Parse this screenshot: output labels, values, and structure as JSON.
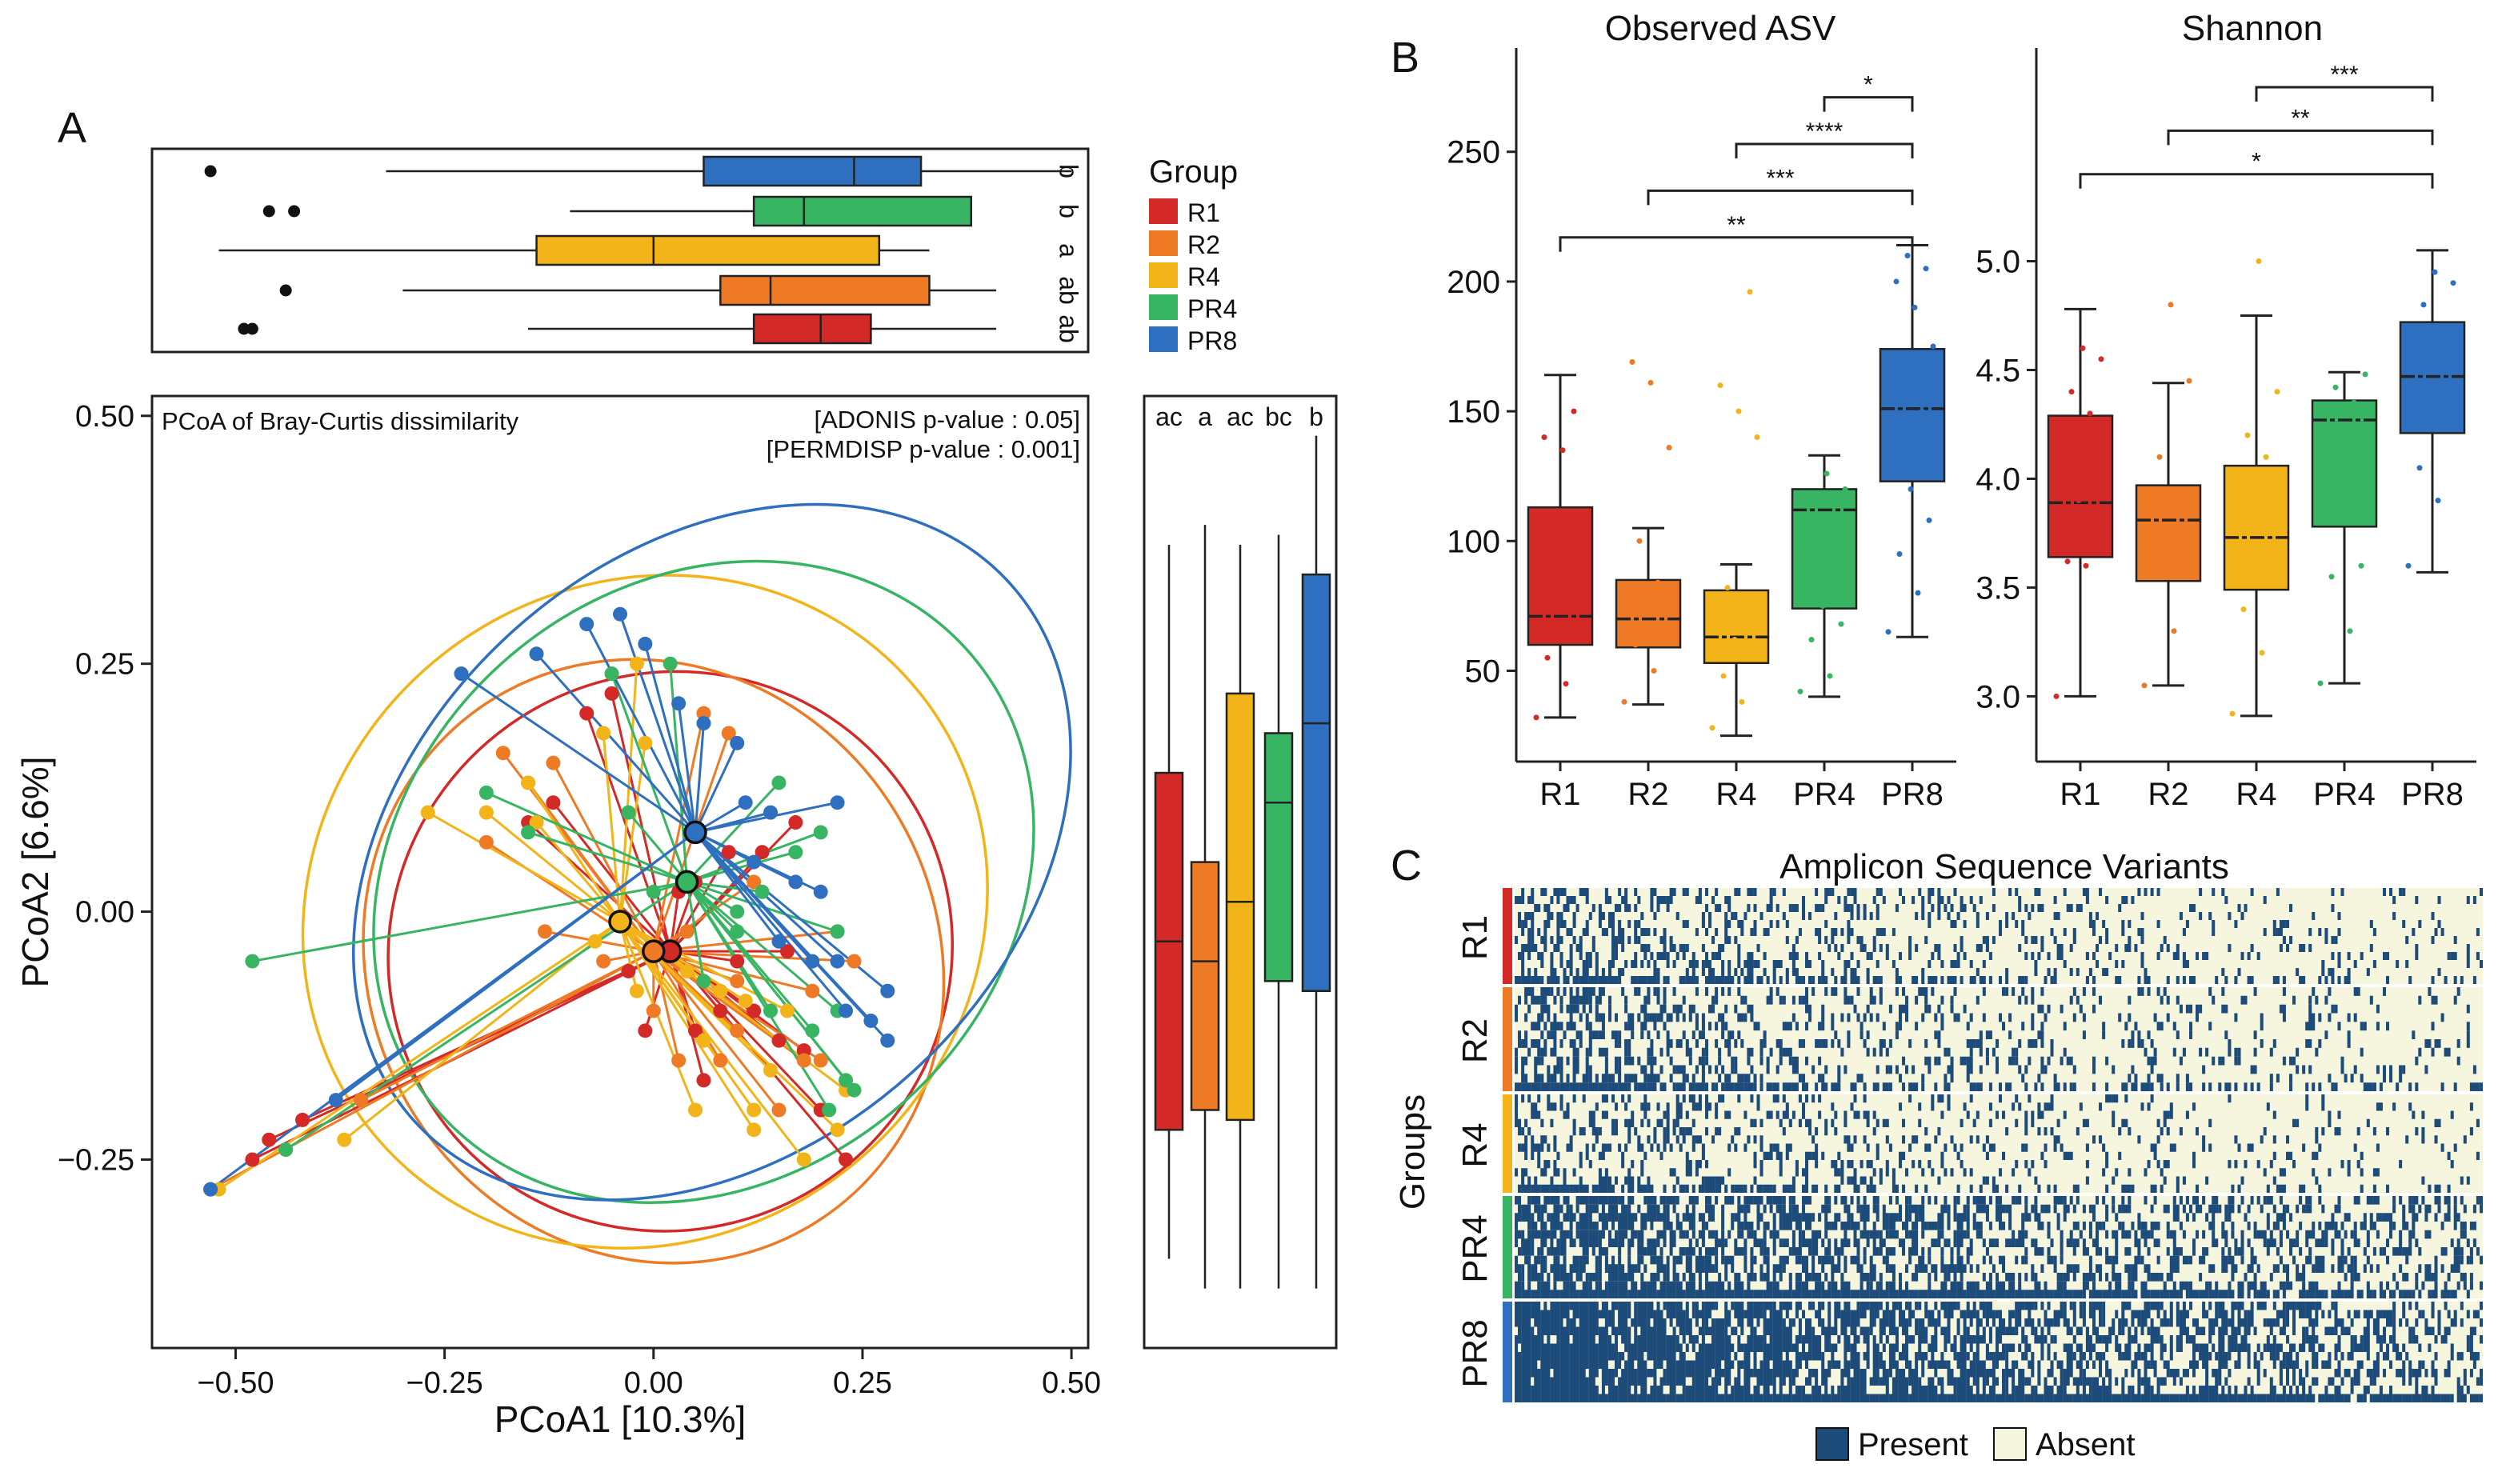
{
  "colors": {
    "R1": "#d42a27",
    "R2": "#ef7a25",
    "R4": "#f2b419",
    "PR4": "#37b562",
    "PR8": "#2f6fc0",
    "present": "#1d4b7a",
    "absent": "#f6f5de"
  },
  "panels": {
    "A": "A",
    "B": "B",
    "C": "C"
  },
  "chart_data": [
    {
      "id": "pcoa",
      "type": "scatter",
      "title": "PCoA of Bray-Curtis dissimilarity",
      "annotations": [
        "[ADONIS p-value : 0.05]",
        "[PERMDISP p-value : 0.001]"
      ],
      "xlabel": "PCoA1 [10.3%]",
      "ylabel": "PCoA2 [6.6%]",
      "xlim": [
        -0.6,
        0.52
      ],
      "ylim": [
        -0.44,
        0.52
      ],
      "xticks": [
        -0.5,
        -0.25,
        0.0,
        0.25,
        0.5
      ],
      "xtick_labels": [
        "−0.50",
        "−0.25",
        "0.00",
        "0.25",
        "0.50"
      ],
      "yticks": [
        -0.25,
        0.0,
        0.25,
        0.5
      ],
      "ytick_labels": [
        "−0.25",
        "0.00",
        "0.25",
        "0.50"
      ],
      "legend": {
        "title": "Group",
        "position": "right-top",
        "entries": [
          "R1",
          "R2",
          "R4",
          "PR4",
          "PR8"
        ]
      },
      "centroids": [
        {
          "group": "R1",
          "x": 0.02,
          "y": -0.04
        },
        {
          "group": "R2",
          "x": 0.0,
          "y": -0.04
        },
        {
          "group": "R4",
          "x": -0.04,
          "y": -0.01
        },
        {
          "group": "PR4",
          "x": 0.04,
          "y": 0.03
        },
        {
          "group": "PR8",
          "x": 0.05,
          "y": 0.08
        }
      ],
      "ellipses": [
        {
          "group": "R1",
          "rx": 0.34,
          "ry": 0.28,
          "angle": -35,
          "cx": 0.02,
          "cy": -0.04
        },
        {
          "group": "R2",
          "rx": 0.34,
          "ry": 0.31,
          "angle": -30,
          "cx": 0.0,
          "cy": -0.05
        },
        {
          "group": "R4",
          "rx": 0.42,
          "ry": 0.33,
          "angle": -38,
          "cx": -0.01,
          "cy": 0.0
        },
        {
          "group": "PR4",
          "rx": 0.42,
          "ry": 0.3,
          "angle": -40,
          "cx": 0.06,
          "cy": 0.03
        },
        {
          "group": "PR8",
          "rx": 0.48,
          "ry": 0.3,
          "angle": -42,
          "cx": 0.07,
          "cy": 0.06
        }
      ],
      "points": {
        "R1": [
          [
            -0.48,
            -0.25
          ],
          [
            -0.46,
            -0.23
          ],
          [
            -0.42,
            -0.21
          ],
          [
            -0.12,
            0.11
          ],
          [
            -0.15,
            0.09
          ],
          [
            -0.08,
            0.2
          ],
          [
            -0.05,
            0.22
          ],
          [
            0.05,
            0.03
          ],
          [
            0.09,
            0.06
          ],
          [
            0.13,
            0.06
          ],
          [
            0.17,
            0.09
          ],
          [
            0.16,
            -0.04
          ],
          [
            0.1,
            -0.05
          ],
          [
            0.12,
            -0.1
          ],
          [
            0.15,
            -0.13
          ],
          [
            0.18,
            -0.14
          ],
          [
            0.08,
            -0.1
          ],
          [
            0.05,
            -0.12
          ],
          [
            0.2,
            -0.2
          ],
          [
            0.23,
            -0.25
          ],
          [
            -0.01,
            -0.12
          ],
          [
            0.06,
            -0.17
          ],
          [
            0.0,
            -0.04
          ],
          [
            0.03,
            0.02
          ],
          [
            -0.03,
            -0.06
          ]
        ],
        "R2": [
          [
            -0.53,
            -0.28
          ],
          [
            -0.35,
            -0.19
          ],
          [
            -0.18,
            0.16
          ],
          [
            -0.15,
            0.13
          ],
          [
            -0.12,
            0.15
          ],
          [
            -0.2,
            0.07
          ],
          [
            -0.13,
            -0.02
          ],
          [
            0.06,
            0.2
          ],
          [
            0.09,
            0.18
          ],
          [
            0.18,
            -0.15
          ],
          [
            0.22,
            -0.02
          ],
          [
            0.19,
            -0.08
          ],
          [
            0.04,
            -0.02
          ],
          [
            0.12,
            0.03
          ],
          [
            0.03,
            -0.15
          ],
          [
            0.15,
            -0.2
          ],
          [
            0.1,
            -0.07
          ],
          [
            -0.06,
            -0.05
          ],
          [
            0.1,
            -0.12
          ],
          [
            0.08,
            -0.15
          ],
          [
            0.2,
            -0.15
          ],
          [
            0.0,
            -0.1
          ],
          [
            0.24,
            -0.05
          ]
        ],
        "R4": [
          [
            -0.52,
            -0.28
          ],
          [
            -0.37,
            -0.23
          ],
          [
            -0.15,
            0.13
          ],
          [
            -0.2,
            0.1
          ],
          [
            -0.14,
            0.09
          ],
          [
            -0.27,
            0.1
          ],
          [
            -0.02,
            0.25
          ],
          [
            -0.06,
            0.18
          ],
          [
            -0.01,
            0.17
          ],
          [
            0.12,
            -0.22
          ],
          [
            0.18,
            -0.25
          ],
          [
            0.22,
            -0.22
          ],
          [
            0.14,
            -0.16
          ],
          [
            0.08,
            -0.08
          ],
          [
            0.06,
            -0.13
          ],
          [
            0.11,
            -0.09
          ],
          [
            0.04,
            -0.06
          ],
          [
            0.16,
            -0.1
          ],
          [
            0.12,
            -0.2
          ],
          [
            0.05,
            -0.2
          ],
          [
            0.23,
            -0.18
          ],
          [
            -0.07,
            -0.03
          ],
          [
            -0.02,
            -0.08
          ]
        ],
        "PR4": [
          [
            -0.48,
            -0.05
          ],
          [
            -0.44,
            -0.24
          ],
          [
            -0.15,
            0.08
          ],
          [
            -0.2,
            0.12
          ],
          [
            -0.05,
            0.24
          ],
          [
            -0.03,
            0.1
          ],
          [
            0.02,
            0.25
          ],
          [
            0.13,
            0.02
          ],
          [
            0.22,
            -0.02
          ],
          [
            0.19,
            -0.12
          ],
          [
            0.23,
            -0.17
          ],
          [
            0.24,
            -0.18
          ],
          [
            0.1,
            0.0
          ],
          [
            0.15,
            0.13
          ],
          [
            0.2,
            0.08
          ],
          [
            0.22,
            -0.1
          ],
          [
            0.1,
            -0.02
          ],
          [
            0.17,
            0.06
          ],
          [
            0.21,
            -0.2
          ],
          [
            0.14,
            -0.1
          ],
          [
            0.0,
            0.02
          ],
          [
            0.06,
            -0.07
          ]
        ],
        "PR8": [
          [
            -0.53,
            -0.28
          ],
          [
            -0.38,
            -0.19
          ],
          [
            -0.23,
            0.24
          ],
          [
            -0.08,
            0.29
          ],
          [
            -0.14,
            0.26
          ],
          [
            -0.04,
            0.3
          ],
          [
            -0.01,
            0.27
          ],
          [
            0.03,
            0.21
          ],
          [
            0.06,
            0.19
          ],
          [
            0.1,
            0.17
          ],
          [
            0.22,
            0.11
          ],
          [
            0.14,
            0.1
          ],
          [
            0.2,
            0.02
          ],
          [
            0.22,
            -0.05
          ],
          [
            0.28,
            -0.08
          ],
          [
            0.28,
            -0.13
          ],
          [
            0.26,
            -0.11
          ],
          [
            0.19,
            -0.05
          ],
          [
            0.17,
            0.03
          ],
          [
            0.23,
            -0.1
          ],
          [
            0.12,
            0.05
          ],
          [
            0.15,
            -0.03
          ],
          [
            0.11,
            0.11
          ]
        ]
      }
    },
    {
      "id": "pc1-boxplot",
      "type": "boxplot",
      "orientation": "horizontal",
      "xlim": [
        -0.6,
        0.52
      ],
      "groups": [
        "R1",
        "R2",
        "R4",
        "PR4",
        "PR8"
      ],
      "letters": [
        "ab",
        "ab",
        "a",
        "b",
        "b"
      ],
      "stats": {
        "R1": {
          "min": -0.15,
          "q1": 0.12,
          "median": 0.2,
          "q3": 0.26,
          "max": 0.41
        },
        "R2": {
          "min": -0.3,
          "q1": 0.08,
          "median": 0.14,
          "q3": 0.33,
          "max": 0.41
        },
        "R4": {
          "min": -0.52,
          "q1": -0.14,
          "median": 0.0,
          "q3": 0.27,
          "max": 0.33
        },
        "PR4": {
          "min": -0.1,
          "q1": 0.12,
          "median": 0.18,
          "q3": 0.38,
          "max": 0.38
        },
        "PR8": {
          "min": -0.32,
          "q1": 0.06,
          "median": 0.24,
          "q3": 0.32,
          "max": 0.5
        }
      },
      "outliers": {
        "R1": [
          -0.49,
          -0.48
        ],
        "R2": [
          -0.44
        ],
        "R4": [],
        "PR4": [
          -0.46,
          -0.43
        ],
        "PR8": [
          -0.53
        ]
      }
    },
    {
      "id": "pc2-boxplot",
      "type": "boxplot",
      "orientation": "vertical",
      "ylim": [
        -0.44,
        0.52
      ],
      "groups": [
        "R1",
        "R2",
        "R4",
        "PR4",
        "PR8"
      ],
      "letters": [
        "ac",
        "a",
        "ac",
        "bc",
        "b"
      ],
      "stats": {
        "R1": {
          "min": -0.35,
          "q1": -0.22,
          "median": -0.03,
          "q3": 0.14,
          "max": 0.37
        },
        "R2": {
          "min": -0.38,
          "q1": -0.2,
          "median": -0.05,
          "q3": 0.05,
          "max": 0.39
        },
        "R4": {
          "min": -0.38,
          "q1": -0.21,
          "median": 0.01,
          "q3": 0.22,
          "max": 0.37
        },
        "PR4": {
          "min": -0.38,
          "q1": -0.07,
          "median": 0.11,
          "q3": 0.18,
          "max": 0.38
        },
        "PR8": {
          "min": -0.38,
          "q1": -0.08,
          "median": 0.19,
          "q3": 0.34,
          "max": 0.48
        }
      }
    },
    {
      "id": "observed-asv",
      "type": "boxplot",
      "title": "Observed ASV",
      "categories": [
        "R1",
        "R2",
        "R4",
        "PR4",
        "PR8"
      ],
      "ylim": [
        15,
        290
      ],
      "yticks": [
        50,
        100,
        150,
        200,
        250
      ],
      "ytick_labels": [
        "50",
        "100",
        "150",
        "200",
        "250"
      ],
      "stats": {
        "R1": {
          "min": 32,
          "q1": 60,
          "median": 71,
          "q3": 113,
          "max": 164
        },
        "R2": {
          "min": 37,
          "q1": 59,
          "median": 70,
          "q3": 85,
          "max": 105
        },
        "R4": {
          "min": 25,
          "q1": 53,
          "median": 63,
          "q3": 81,
          "max": 91
        },
        "PR4": {
          "min": 40,
          "q1": 74,
          "median": 112,
          "q3": 120,
          "max": 133
        },
        "PR8": {
          "min": 63,
          "q1": 123,
          "median": 151,
          "q3": 174,
          "max": 214
        }
      },
      "jitter": {
        "R1": [
          32,
          45,
          55,
          65,
          75,
          90,
          98,
          100,
          110,
          135,
          140,
          150
        ],
        "R2": [
          38,
          50,
          60,
          65,
          72,
          80,
          84,
          100,
          136,
          161,
          169
        ],
        "R4": [
          28,
          38,
          48,
          56,
          62,
          68,
          75,
          82,
          140,
          150,
          160,
          196
        ],
        "PR4": [
          42,
          48,
          62,
          68,
          75,
          92,
          110,
          116,
          120,
          126
        ],
        "PR8": [
          65,
          80,
          95,
          108,
          120,
          130,
          150,
          160,
          175,
          190,
          200,
          205,
          210
        ]
      },
      "significance": [
        {
          "from": "PR4",
          "to": "PR8",
          "label": "*",
          "y": 271
        },
        {
          "from": "R4",
          "to": "PR8",
          "label": "****",
          "y": 253
        },
        {
          "from": "R2",
          "to": "PR8",
          "label": "***",
          "y": 235
        },
        {
          "from": "R1",
          "to": "PR8",
          "label": "**",
          "y": 217
        }
      ]
    },
    {
      "id": "shannon",
      "type": "boxplot",
      "title": "Shannon",
      "categories": [
        "R1",
        "R2",
        "R4",
        "PR4",
        "PR8"
      ],
      "ylim": [
        2.7,
        5.98
      ],
      "yticks": [
        3.0,
        3.5,
        4.0,
        4.5,
        5.0
      ],
      "ytick_labels": [
        "3.0",
        "3.5",
        "4.0",
        "4.5",
        "5.0"
      ],
      "stats": {
        "R1": {
          "min": 3.0,
          "q1": 3.64,
          "median": 3.89,
          "q3": 4.29,
          "max": 4.78
        },
        "R2": {
          "min": 3.05,
          "q1": 3.53,
          "median": 3.81,
          "q3": 3.97,
          "max": 4.44
        },
        "R4": {
          "min": 2.91,
          "q1": 3.49,
          "median": 3.73,
          "q3": 4.06,
          "max": 4.75
        },
        "PR4": {
          "min": 3.06,
          "q1": 3.78,
          "median": 4.27,
          "q3": 4.36,
          "max": 4.49
        },
        "PR8": {
          "min": 3.57,
          "q1": 4.21,
          "median": 4.47,
          "q3": 4.72,
          "max": 5.05
        }
      },
      "jitter": {
        "R1": [
          3.0,
          3.6,
          3.62,
          3.75,
          3.9,
          4.1,
          4.3,
          4.4,
          4.55,
          4.6
        ],
        "R2": [
          3.05,
          3.3,
          3.55,
          3.6,
          3.75,
          3.85,
          3.95,
          4.1,
          4.45,
          4.8
        ],
        "R4": [
          2.92,
          3.2,
          3.4,
          3.55,
          3.7,
          3.85,
          4.1,
          4.2,
          4.4,
          5.0
        ],
        "PR4": [
          3.06,
          3.3,
          3.55,
          3.6,
          4.0,
          4.2,
          4.35,
          4.42,
          4.48
        ],
        "PR8": [
          3.6,
          3.9,
          4.05,
          4.25,
          4.4,
          4.5,
          4.6,
          4.8,
          4.9,
          4.95
        ]
      },
      "significance": [
        {
          "from": "R4",
          "to": "PR8",
          "label": "***",
          "y": 5.8
        },
        {
          "from": "R2",
          "to": "PR8",
          "label": "**",
          "y": 5.6
        },
        {
          "from": "R1",
          "to": "PR8",
          "label": "*",
          "y": 5.4
        }
      ]
    },
    {
      "id": "asv-heatmap",
      "type": "heatmap",
      "title": "Amplicon Sequence Variants",
      "ylabel": "Groups",
      "rows": [
        "R1",
        "R2",
        "R4",
        "PR4",
        "PR8"
      ],
      "legend": [
        "Present",
        "Absent"
      ],
      "present_density_by_group": [
        0.28,
        0.3,
        0.25,
        0.45,
        0.55
      ]
    }
  ]
}
